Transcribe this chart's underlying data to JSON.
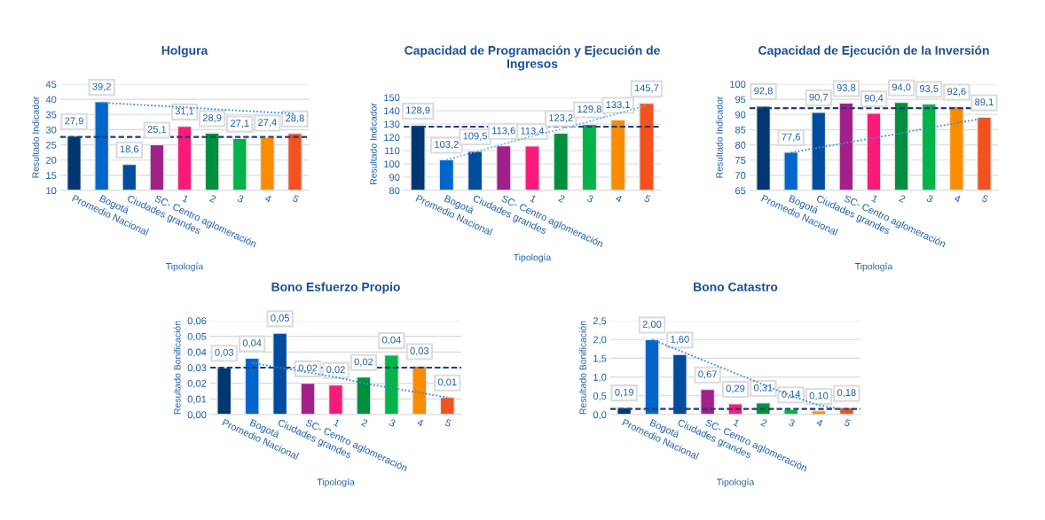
{
  "chart_data": [
    {
      "type": "bar",
      "title": "Holgura",
      "xlabel": "Tipología",
      "ylabel": "Resultado Indicador",
      "categories": [
        "Promedio Nacional",
        "Bogotá",
        "Ciudades grandes",
        "SC- Centro aglomeración",
        "1",
        "2",
        "3",
        "4",
        "5"
      ],
      "ylim": [
        10,
        45
      ],
      "yticks": [
        10,
        15,
        20,
        25,
        30,
        35,
        40,
        45
      ],
      "grid": "y",
      "series": [
        {
          "colors": [
            "#003770",
            "#0066cc",
            "#004c9e",
            "#a2208a",
            "#fb1a7a",
            "#008f3e",
            "#00b34a",
            "#fb8c00",
            "#f4511e"
          ],
          "values": [
            27.9,
            39.2,
            18.6,
            25.1,
            31.1,
            28.9,
            27.1,
            27.4,
            28.8
          ],
          "value_labels": [
            "27,9",
            "39,2",
            "18,6",
            "25,1",
            "31,1",
            "28,9",
            "27,1",
            "27,4",
            "28,8"
          ]
        },
        {
          "type": "line",
          "color": "#3a8fd6",
          "line_style": "dotted",
          "values": [
            null,
            38.9,
            38.4,
            37.9,
            37.4,
            36.8,
            36.3,
            35.8,
            35.3
          ]
        }
      ],
      "ref_lines": [
        {
          "axis": "y",
          "value": 27.6,
          "color": "#1f3d7a",
          "line_style": "dashed"
        }
      ]
    },
    {
      "type": "bar",
      "title": "Capacidad de Programación y Ejecución de Ingresos",
      "xlabel": "Tipología",
      "ylabel": "Resultado Indicador",
      "categories": [
        "Promedio Nacional",
        "Bogotá",
        "Ciudades grandes",
        "SC- Centro aglomeración",
        "1",
        "2",
        "3",
        "4",
        "5"
      ],
      "ylim": [
        80,
        150
      ],
      "yticks": [
        80,
        90,
        100,
        110,
        120,
        130,
        140,
        150
      ],
      "grid": "y",
      "series": [
        {
          "colors": [
            "#003770",
            "#0066cc",
            "#004c9e",
            "#a2208a",
            "#fb1a7a",
            "#008f3e",
            "#00b34a",
            "#fb8c00",
            "#f4511e"
          ],
          "values": [
            128.9,
            103.2,
            109.5,
            113.6,
            113.4,
            123.2,
            129.8,
            133.1,
            145.7
          ],
          "value_labels": [
            "128,9",
            "103,2",
            "109,5",
            "113,6",
            "113,4",
            "123,2",
            "129,8",
            "133,1",
            "145,7"
          ]
        },
        {
          "type": "line",
          "color": "#6cb4ec",
          "line_style": "dotted",
          "values": [
            null,
            103,
            109,
            115,
            121,
            126,
            132,
            138,
            144
          ]
        }
      ],
      "ref_lines": [
        {
          "axis": "y",
          "value": 128,
          "color": "#1f3d7a",
          "line_style": "dashed"
        }
      ]
    },
    {
      "type": "bar",
      "title": "Capacidad de Ejecución de la Inversión",
      "xlabel": "Tipología",
      "ylabel": "Resultado Indicador",
      "categories": [
        "Promedio Nacional",
        "Bogotá",
        "Ciudades grandes",
        "SC- Centro aglomeración",
        "1",
        "2",
        "3",
        "4",
        "5"
      ],
      "ylim": [
        65,
        100
      ],
      "yticks": [
        65,
        70,
        75,
        80,
        85,
        90,
        95,
        100
      ],
      "grid": "y",
      "series": [
        {
          "colors": [
            "#003770",
            "#0066cc",
            "#004c9e",
            "#a2208a",
            "#fb1a7a",
            "#008f3e",
            "#00b34a",
            "#fb8c00",
            "#f4511e"
          ],
          "values": [
            92.8,
            77.6,
            90.7,
            93.8,
            90.4,
            94.0,
            93.5,
            92.6,
            89.1
          ],
          "value_labels": [
            "92,8",
            "77,6",
            "90,7",
            "93,8",
            "90,4",
            "94,0",
            "93,5",
            "92,6",
            "89,1"
          ]
        },
        {
          "type": "line",
          "color": "#3a8fd6",
          "line_style": "dotted",
          "values": [
            null,
            77.5,
            79.1,
            80.7,
            82.3,
            83.9,
            85.6,
            87.2,
            88.8
          ]
        }
      ],
      "ref_lines": [
        {
          "axis": "y",
          "value": 92.1,
          "color": "#1f3d7a",
          "line_style": "dashed"
        }
      ]
    },
    {
      "type": "bar",
      "title": "Bono Esfuerzo Propio",
      "xlabel": "Tipología",
      "ylabel": "Resultado Bonificación",
      "categories": [
        "Promedio Nacional",
        "Bogotá",
        "Ciudades grandes",
        "SC- Centro aglomeración",
        "1",
        "2",
        "3",
        "4",
        "5"
      ],
      "ylim": [
        0,
        0.06
      ],
      "yticks": [
        {
          "value": 0,
          "label": "0,00"
        },
        {
          "value": 0.01,
          "label": "0,01"
        },
        {
          "value": 0.02,
          "label": "0,02"
        },
        {
          "value": 0.03,
          "label": "0,03"
        },
        {
          "value": 0.04,
          "label": "0,04"
        },
        {
          "value": 0.05,
          "label": "0,05"
        },
        {
          "value": 0.06,
          "label": "0,06"
        }
      ],
      "grid": "y",
      "series": [
        {
          "colors": [
            "#003770",
            "#0066cc",
            "#004c9e",
            "#a2208a",
            "#fb1a7a",
            "#008f3e",
            "#00b34a",
            "#fb8c00",
            "#f4511e"
          ],
          "values": [
            0.03,
            0.036,
            0.052,
            0.02,
            0.019,
            0.024,
            0.038,
            0.031,
            0.011
          ],
          "value_labels": [
            "0,03",
            "0,04",
            "0,05",
            "0,02",
            "0,02",
            "0,02",
            "0,04",
            "0,03",
            "0,01"
          ]
        },
        {
          "type": "line",
          "color": "#3a8fd6",
          "line_style": "dotted",
          "values": [
            null,
            0.033,
            0.03,
            0.027,
            0.024,
            0.02,
            0.017,
            0.014,
            0.011
          ]
        }
      ],
      "ref_lines": [
        {
          "axis": "y",
          "value": 0.03,
          "color": "#1f3d7a",
          "line_style": "dashed"
        }
      ]
    },
    {
      "type": "bar",
      "title": "Bono Catastro",
      "xlabel": "Tipología",
      "ylabel": "Resultado Bonificación",
      "categories": [
        "Promedio Nacional",
        "Bogotá",
        "Ciudades grandes",
        "SC- Centro aglomeración",
        "1",
        "2",
        "3",
        "4",
        "5"
      ],
      "ylim": [
        0,
        2.5
      ],
      "yticks": [
        {
          "value": 0,
          "label": "0,0"
        },
        {
          "value": 0.5,
          "label": "0,5"
        },
        {
          "value": 1.0,
          "label": "1,0"
        },
        {
          "value": 1.5,
          "label": "1,5"
        },
        {
          "value": 2.0,
          "label": "2,0"
        },
        {
          "value": 2.5,
          "label": "2,5"
        }
      ],
      "grid": "y",
      "series": [
        {
          "colors": [
            "#003770",
            "#0066cc",
            "#004c9e",
            "#a2208a",
            "#fb1a7a",
            "#008f3e",
            "#00b34a",
            "#fb8c00",
            "#f4511e"
          ],
          "values": [
            0.19,
            2.0,
            1.6,
            0.67,
            0.29,
            0.31,
            0.14,
            0.1,
            0.18
          ],
          "value_labels": [
            "0,19",
            "2,00",
            "1,60",
            "0,67",
            "0,29",
            "0,31",
            "0,14",
            "0,10",
            "0,18"
          ]
        },
        {
          "type": "line",
          "color": "#3a8fd6",
          "line_style": "dotted",
          "values": [
            null,
            2.0,
            1.7,
            1.4,
            1.1,
            0.8,
            0.5,
            0.25,
            0.12
          ]
        }
      ],
      "ref_lines": [
        {
          "axis": "y",
          "value": 0.15,
          "color": "#1f3d7a",
          "line_style": "dashed"
        }
      ]
    }
  ]
}
